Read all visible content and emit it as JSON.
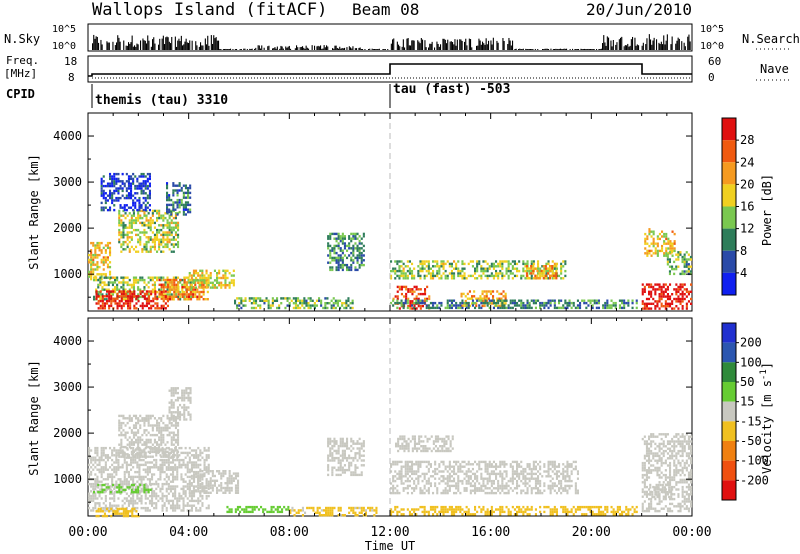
{
  "header": {
    "title": "Wallops Island (fitACF)",
    "beam": "Beam 08",
    "date": "20/Jun/2010"
  },
  "status_panel": {
    "nsky_label": "N.Sky",
    "nsky_ticks": [
      "10^5",
      "10^0"
    ],
    "nsearch_label": "N.Search",
    "nsearch_ticks": [
      "10^5",
      "10^0"
    ],
    "freq_label": "Freq.",
    "freq_unit": "[MHz]",
    "freq_ticks": [
      "18",
      "8"
    ],
    "nave_label": "Nave",
    "nave_ticks": [
      "60",
      "0"
    ],
    "cpid_label": "CPID",
    "cpid_segments": [
      {
        "name": "themis (tau) 3310",
        "start_hour": 0,
        "end_hour": 12
      },
      {
        "name": "tau (fast) -503",
        "start_hour": 12,
        "end_hour": 24
      }
    ]
  },
  "time_axis": {
    "label": "Time UT",
    "ticks": [
      "00:00",
      "04:00",
      "08:00",
      "12:00",
      "16:00",
      "20:00",
      "00:00"
    ]
  },
  "chart_data": [
    {
      "type": "heatmap",
      "parameter": "Power",
      "ylabel": "Slant Range [km]",
      "yticks": [
        "1000",
        "2000",
        "3000",
        "4000"
      ],
      "ylim": [
        200,
        4500
      ],
      "xlim_hours": [
        0,
        24
      ],
      "colorbar": {
        "label": "Power [dB]",
        "ticks": [
          "4",
          "8",
          "12",
          "16",
          "20",
          "24",
          "28"
        ],
        "range": [
          0,
          30
        ],
        "colors": [
          "#1020f0",
          "#2a4aa8",
          "#2e7d5a",
          "#7ac850",
          "#f0d020",
          "#f59a20",
          "#f05a10",
          "#e01010"
        ]
      },
      "regions": [
        {
          "t0": 0.0,
          "t1": 0.9,
          "r0": 900,
          "r1": 1700,
          "level": 18
        },
        {
          "t0": 0.2,
          "t1": 4.2,
          "r0": 450,
          "r1": 950,
          "level": 14
        },
        {
          "t0": 0.3,
          "t1": 3.2,
          "r0": 250,
          "r1": 650,
          "level": 28
        },
        {
          "t0": 2.8,
          "t1": 4.8,
          "r0": 450,
          "r1": 900,
          "level": 22
        },
        {
          "t0": 4.0,
          "t1": 5.8,
          "r0": 700,
          "r1": 1100,
          "level": 17
        },
        {
          "t0": 1.2,
          "t1": 3.6,
          "r0": 1500,
          "r1": 2400,
          "level": 15
        },
        {
          "t0": 3.1,
          "t1": 4.1,
          "r0": 2300,
          "r1": 3000,
          "level": 8
        },
        {
          "t0": 0.5,
          "t1": 2.5,
          "r0": 2400,
          "r1": 3200,
          "level": 4
        },
        {
          "t0": 5.8,
          "t1": 10.5,
          "r0": 250,
          "r1": 500,
          "level": 12
        },
        {
          "t0": 9.5,
          "t1": 11.0,
          "r0": 1100,
          "r1": 1900,
          "level": 10
        },
        {
          "t0": 12.0,
          "t1": 19.0,
          "r0": 900,
          "r1": 1300,
          "level": 14
        },
        {
          "t0": 12.1,
          "t1": 13.6,
          "r0": 250,
          "r1": 750,
          "level": 26
        },
        {
          "t0": 14.8,
          "t1": 16.6,
          "r0": 300,
          "r1": 650,
          "level": 20
        },
        {
          "t0": 12.0,
          "t1": 21.8,
          "r0": 250,
          "r1": 450,
          "level": 9
        },
        {
          "t0": 17.4,
          "t1": 18.6,
          "r0": 900,
          "r1": 1200,
          "level": 21
        },
        {
          "t0": 22.0,
          "t1": 24.0,
          "r0": 250,
          "r1": 800,
          "level": 29
        },
        {
          "t0": 22.1,
          "t1": 23.3,
          "r0": 1400,
          "r1": 2000,
          "level": 18
        },
        {
          "t0": 23.0,
          "t1": 24.0,
          "r0": 1000,
          "r1": 1500,
          "level": 12
        }
      ]
    },
    {
      "type": "heatmap",
      "parameter": "Velocity",
      "ylabel": "Slant Range [km]",
      "yticks": [
        "1000",
        "2000",
        "3000",
        "4000"
      ],
      "ylim": [
        200,
        4500
      ],
      "xlim_hours": [
        0,
        24
      ],
      "colorbar": {
        "label": "Velocity [m s^-1]",
        "ticks": [
          "200",
          "100",
          "50",
          "15",
          "-15",
          "-50",
          "-100",
          "-200"
        ],
        "range": [
          -250,
          250
        ],
        "colors": [
          "#2030d0",
          "#2b56b0",
          "#2f8a3a",
          "#66cc33",
          "#c8c8c0",
          "#f0c020",
          "#f08010",
          "#f05010",
          "#e01010"
        ]
      },
      "regions": [
        {
          "t0": 0.0,
          "t1": 4.8,
          "r0": 300,
          "r1": 1700,
          "level": 0
        },
        {
          "t0": 1.2,
          "t1": 3.6,
          "r0": 1500,
          "r1": 2400,
          "level": 0
        },
        {
          "t0": 3.2,
          "t1": 4.1,
          "r0": 2300,
          "r1": 3000,
          "level": 0
        },
        {
          "t0": 4.0,
          "t1": 6.0,
          "r0": 700,
          "r1": 1200,
          "level": 5
        },
        {
          "t0": 0.2,
          "t1": 2.5,
          "r0": 700,
          "r1": 900,
          "level": 30
        },
        {
          "t0": 0.3,
          "t1": 2.0,
          "r0": 220,
          "r1": 380,
          "level": -60
        },
        {
          "t0": 5.5,
          "t1": 8.0,
          "r0": 280,
          "r1": 420,
          "level": 45
        },
        {
          "t0": 8.0,
          "t1": 11.5,
          "r0": 230,
          "r1": 400,
          "level": -40
        },
        {
          "t0": 9.5,
          "t1": 11.0,
          "r0": 1100,
          "r1": 1900,
          "level": 0
        },
        {
          "t0": 12.0,
          "t1": 19.5,
          "r0": 700,
          "r1": 1400,
          "level": 0
        },
        {
          "t0": 12.2,
          "t1": 14.5,
          "r0": 1600,
          "r1": 1950,
          "level": 0
        },
        {
          "t0": 12.0,
          "t1": 21.8,
          "r0": 220,
          "r1": 420,
          "level": -45
        },
        {
          "t0": 22.0,
          "t1": 24.0,
          "r0": 300,
          "r1": 2000,
          "level": 0
        },
        {
          "t0": 22.3,
          "t1": 23.2,
          "r0": 600,
          "r1": 900,
          "level": -8
        }
      ]
    }
  ]
}
